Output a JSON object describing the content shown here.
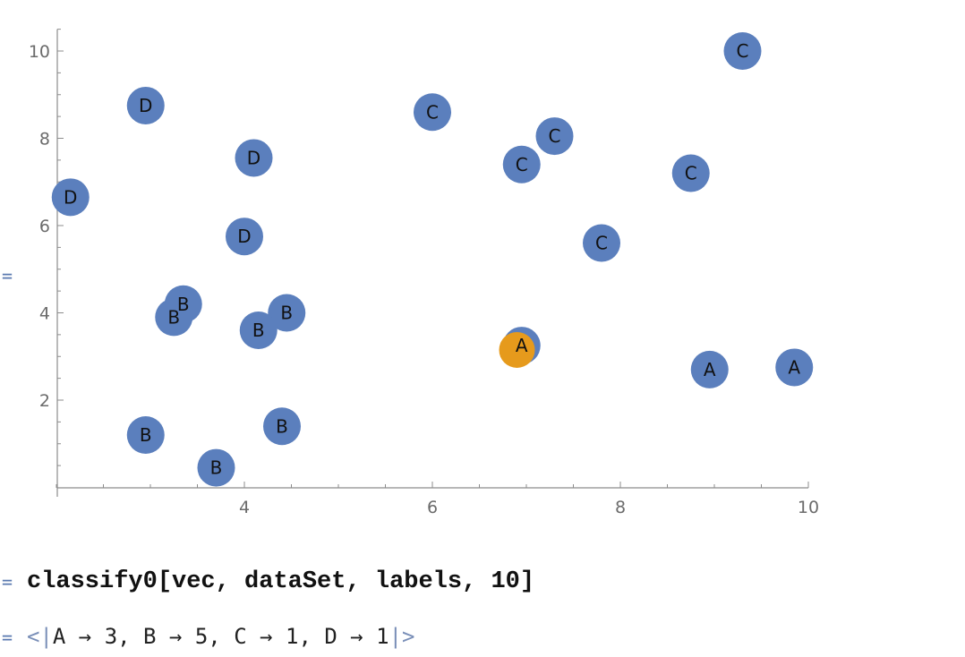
{
  "notebook": {
    "cell_marker": "=",
    "input_line": "classify0[vec, dataSet, labels, 10]",
    "output": {
      "open": "<|",
      "body": "A → 3, B → 5, C → 1, D → 1",
      "close": "|>"
    }
  },
  "chart_data": {
    "type": "scatter",
    "title": "",
    "xlabel": "",
    "ylabel": "",
    "xlim": [
      2,
      10
    ],
    "ylim": [
      0,
      10.5
    ],
    "x_ticks": [
      4,
      6,
      8,
      10
    ],
    "y_ticks": [
      2,
      4,
      6,
      8,
      10
    ],
    "grid": false,
    "colors": {
      "points": "#5b7fbd",
      "highlight": "#e69a1c",
      "axis": "#8c8c8c",
      "tick_label": "#6b6b6b"
    },
    "points": [
      {
        "x": 9.3,
        "y": 10.0,
        "label": "C"
      },
      {
        "x": 2.95,
        "y": 8.75,
        "label": "D"
      },
      {
        "x": 6.0,
        "y": 8.6,
        "label": "C"
      },
      {
        "x": 7.3,
        "y": 8.05,
        "label": "C"
      },
      {
        "x": 4.1,
        "y": 7.55,
        "label": "D"
      },
      {
        "x": 6.95,
        "y": 7.4,
        "label": "C"
      },
      {
        "x": 8.75,
        "y": 7.2,
        "label": "C"
      },
      {
        "x": 2.15,
        "y": 6.65,
        "label": "D"
      },
      {
        "x": 4.0,
        "y": 5.75,
        "label": "D"
      },
      {
        "x": 7.8,
        "y": 5.6,
        "label": "C"
      },
      {
        "x": 3.35,
        "y": 4.2,
        "label": "B"
      },
      {
        "x": 3.25,
        "y": 3.9,
        "label": "B"
      },
      {
        "x": 4.45,
        "y": 4.0,
        "label": "B"
      },
      {
        "x": 4.15,
        "y": 3.6,
        "label": "B"
      },
      {
        "x": 6.95,
        "y": 3.25,
        "label": "A"
      },
      {
        "x": 8.95,
        "y": 2.7,
        "label": "A"
      },
      {
        "x": 9.85,
        "y": 2.75,
        "label": "A"
      },
      {
        "x": 2.95,
        "y": 1.2,
        "label": "B"
      },
      {
        "x": 4.4,
        "y": 1.4,
        "label": "B"
      },
      {
        "x": 3.7,
        "y": 0.45,
        "label": "B"
      },
      {
        "x": 6.9,
        "y": 3.15,
        "label": "",
        "highlight": true
      }
    ]
  }
}
